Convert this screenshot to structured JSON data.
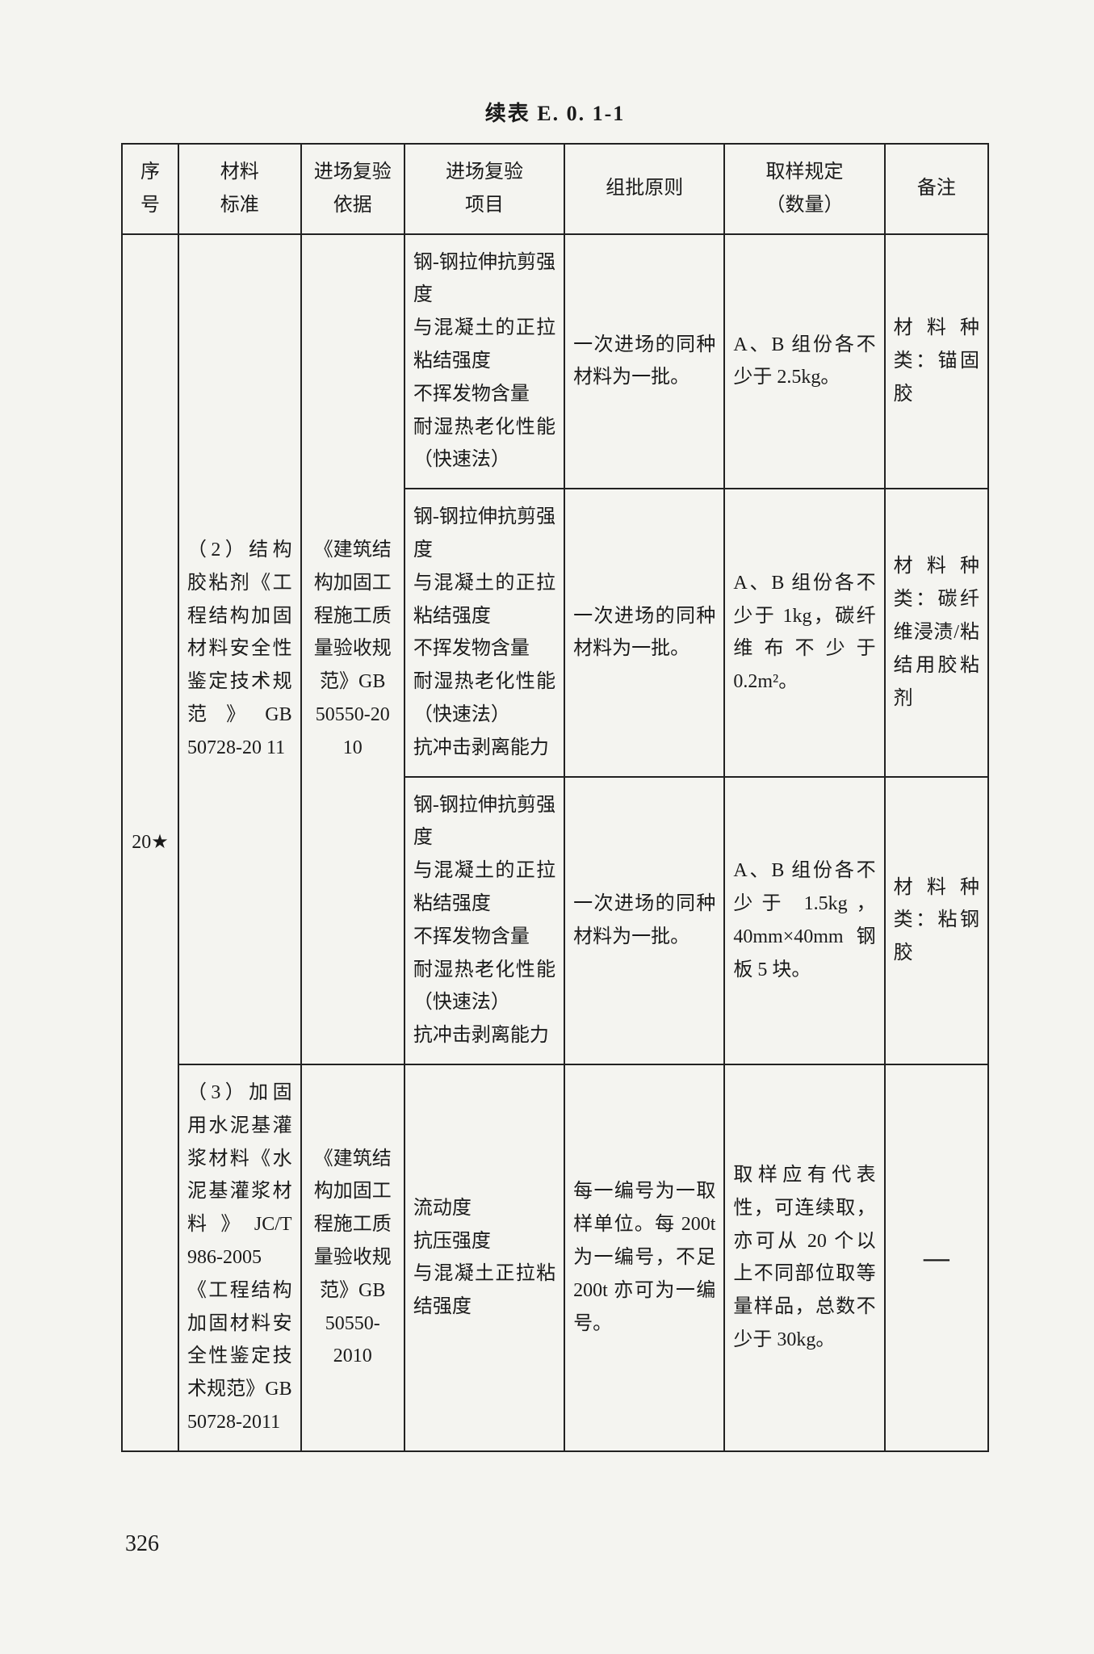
{
  "caption": "续表 E. 0. 1-1",
  "page_number": "326",
  "columns": {
    "seq": "序号",
    "std": "材料\n标准",
    "basis": "进场复验\n依据",
    "item": "进场复验\n项目",
    "batch": "组批原则",
    "samp": "取样规定\n（数量）",
    "note": "备注"
  },
  "seq_value": "20★",
  "std_block1": "（2）结构胶粘剂《工程结构加固材料安全性鉴定技术规范》GB 50728-20 11",
  "basis_block1": "《建筑结构加固工程施工质量验收规范》GB 50550-20 10",
  "row1": {
    "item": "钢-钢拉伸抗剪强度\n与混凝土的正拉粘结强度\n不挥发物含量\n耐湿热老化性能（快速法）",
    "batch": "一次进场的同种材料为一批。",
    "samp": "A、B 组份各不少于 2.5kg。",
    "note": "材料种类：锚固胶"
  },
  "row2": {
    "item": "钢-钢拉伸抗剪强度\n与混凝土的正拉粘结强度\n不挥发物含量\n耐湿热老化性能（快速法）\n抗冲击剥离能力",
    "batch": "一次进场的同种材料为一批。",
    "samp": "A、B 组份各不少于 1kg，碳纤维布不少于 0.2m²。",
    "note": "材料种类：碳纤维浸渍/粘结用胶粘剂"
  },
  "row3": {
    "item": "钢-钢拉伸抗剪强度\n与混凝土的正拉粘结强度\n不挥发物含量\n耐湿热老化性能（快速法）\n抗冲击剥离能力",
    "batch": "一次进场的同种材料为一批。",
    "samp": "A、B 组份各不少于 1.5kg，40mm×40mm 钢板 5 块。",
    "note": "材料种类：粘钢胶"
  },
  "std_block2": "（3）加固用水泥基灌浆材料《水泥基灌浆材料》JC/T 986-2005《工程结构加固材料安全性鉴定技术规范》GB 50728-2011",
  "basis_block2": "《建筑结构加固工程施工质量验收规范》GB 50550-2010",
  "row4": {
    "item": "流动度\n抗压强度\n与混凝土正拉粘结强度",
    "batch": "每一编号为一取样单位。每 200t 为一编号，不足 200t 亦可为一编号。",
    "samp": "取样应有代表性，可连续取，亦可从 20 个以上不同部位取等量样品，总数不少于 30kg。",
    "note": "—"
  }
}
